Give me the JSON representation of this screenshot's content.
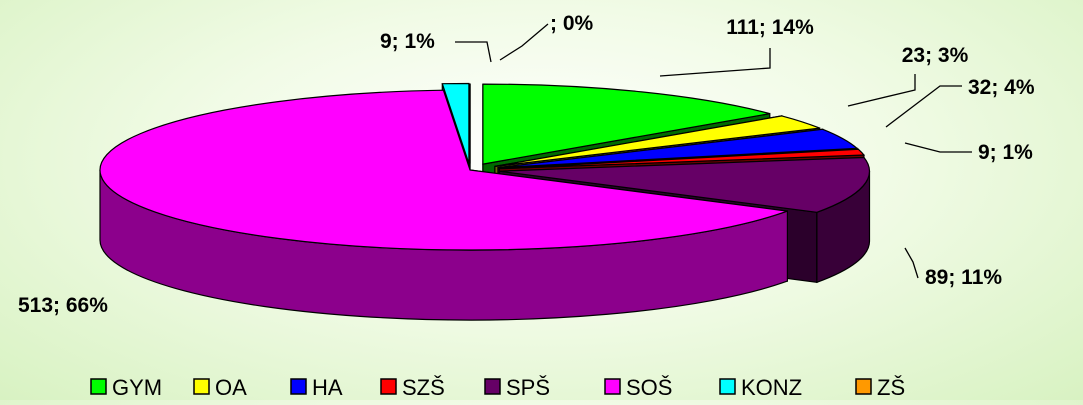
{
  "chart_data": {
    "type": "pie",
    "title": "",
    "categories": [
      "GYM",
      "OA",
      "HA",
      "SZŠ",
      "SPŠ",
      "SOŠ",
      "KONZ",
      "ZŠ"
    ],
    "values": [
      111,
      23,
      32,
      9,
      89,
      513,
      9,
      0
    ],
    "percentages": [
      14,
      3,
      4,
      1,
      11,
      66,
      1,
      0
    ],
    "data_labels": [
      "111; 14%",
      "23; 3%",
      "32; 4%",
      "9; 1%",
      "89; 11%",
      "513; 66%",
      "9; 1%",
      "; 0%"
    ],
    "colors": [
      "#00ff00",
      "#ffff00",
      "#0000ff",
      "#ff0000",
      "#660066",
      "#ff00ff",
      "#00ffff",
      "#ff9900"
    ],
    "style": "3d-exploded",
    "legend": {
      "position": "bottom"
    }
  }
}
